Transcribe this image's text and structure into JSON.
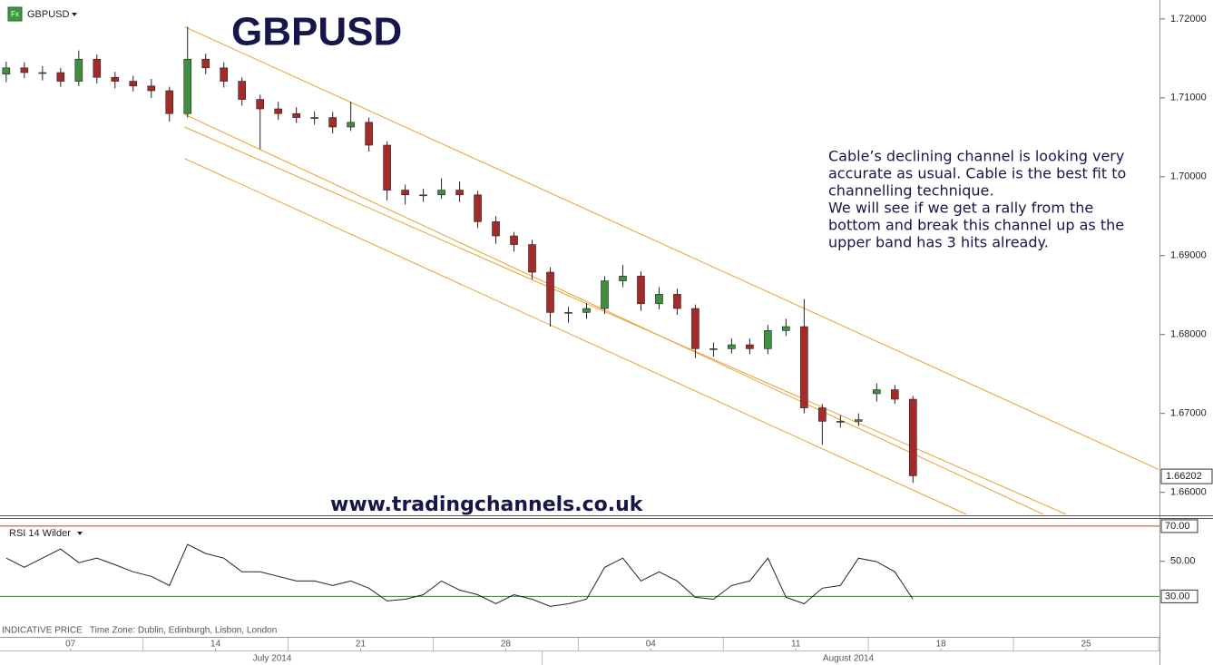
{
  "header": {
    "icon": "Fx",
    "symbol": "GBPUSD"
  },
  "chart_data": {
    "type": "candlestick",
    "title": "GBPUSD",
    "annotation": [
      "Cable’s declining channel is looking very",
      "accurate as usual. Cable is the best fit to",
      "channelling technique.",
      "We will see if we get a rally from the",
      "bottom and break this channel up as the",
      "upper band has 3 hits already."
    ],
    "watermark": "www.tradingchannels.co.uk",
    "up_color": "#3f8f3f",
    "down_color": "#a52a2a",
    "x": [
      3.9,
      4.775,
      5.65,
      6.525,
      7.4,
      8.275,
      9.15,
      10.025,
      10.9,
      11.775,
      12.65,
      13.525,
      14.4,
      15.275,
      16.15,
      17.025,
      17.9,
      18.775,
      19.65,
      20.525,
      21.4,
      22.275,
      23.15,
      24.025,
      24.9,
      25.775,
      26.65,
      27.525,
      28.4,
      29.275,
      30.15,
      31.025,
      31.9,
      32.775,
      33.65,
      34.525,
      35.4,
      36.275,
      37.15,
      38.025,
      38.9,
      39.775,
      40.65,
      41.525,
      42.4,
      43.275,
      44.15,
      45.025,
      45.9,
      46.775,
      47.65
    ],
    "ohlc": [
      [
        1.713,
        1.7146,
        1.712,
        1.7138
      ],
      [
        1.7138,
        1.7145,
        1.7125,
        1.7132
      ],
      [
        1.7132,
        1.714,
        1.7122,
        1.7132
      ],
      [
        1.7132,
        1.7138,
        1.7114,
        1.7121
      ],
      [
        1.7121,
        1.716,
        1.7115,
        1.7149
      ],
      [
        1.7149,
        1.7155,
        1.7118,
        1.7126
      ],
      [
        1.7126,
        1.7133,
        1.7112,
        1.7121
      ],
      [
        1.7121,
        1.7128,
        1.7108,
        1.7115
      ],
      [
        1.7115,
        1.7124,
        1.71,
        1.7109
      ],
      [
        1.7109,
        1.7114,
        1.707,
        1.708
      ],
      [
        1.708,
        1.719,
        1.7075,
        1.7149
      ],
      [
        1.7149,
        1.7156,
        1.713,
        1.7138
      ],
      [
        1.7138,
        1.7145,
        1.7113,
        1.7121
      ],
      [
        1.7121,
        1.7126,
        1.709,
        1.7098
      ],
      [
        1.7098,
        1.7104,
        1.7035,
        1.7086
      ],
      [
        1.7086,
        1.7095,
        1.7072,
        1.708
      ],
      [
        1.708,
        1.7088,
        1.7068,
        1.7075
      ],
      [
        1.7075,
        1.7083,
        1.7066,
        1.7075
      ],
      [
        1.7075,
        1.7082,
        1.7055,
        1.7063
      ],
      [
        1.7063,
        1.7095,
        1.7058,
        1.7069
      ],
      [
        1.7069,
        1.7075,
        1.7032,
        1.704
      ],
      [
        1.704,
        1.7045,
        1.697,
        1.6983
      ],
      [
        1.6983,
        1.699,
        1.6965,
        1.6977
      ],
      [
        1.6977,
        1.6985,
        1.6968,
        1.6977
      ],
      [
        1.6977,
        1.6998,
        1.6972,
        1.6983
      ],
      [
        1.6983,
        1.6994,
        1.6968,
        1.6977
      ],
      [
        1.6977,
        1.6982,
        1.6935,
        1.6943
      ],
      [
        1.6943,
        1.695,
        1.6915,
        1.6925
      ],
      [
        1.6925,
        1.693,
        1.6905,
        1.6914
      ],
      [
        1.6914,
        1.692,
        1.687,
        1.6879
      ],
      [
        1.6879,
        1.6885,
        1.681,
        1.6828
      ],
      [
        1.6828,
        1.6835,
        1.6815,
        1.6828
      ],
      [
        1.6828,
        1.684,
        1.682,
        1.6833
      ],
      [
        1.6833,
        1.6874,
        1.6826,
        1.6868
      ],
      [
        1.6868,
        1.6888,
        1.686,
        1.6874
      ],
      [
        1.6874,
        1.688,
        1.683,
        1.6839
      ],
      [
        1.6839,
        1.686,
        1.6832,
        1.6851
      ],
      [
        1.6851,
        1.6858,
        1.6825,
        1.6833
      ],
      [
        1.6833,
        1.6838,
        1.677,
        1.6782
      ],
      [
        1.6782,
        1.679,
        1.6772,
        1.6782
      ],
      [
        1.6782,
        1.6795,
        1.6776,
        1.6787
      ],
      [
        1.6787,
        1.6795,
        1.6775,
        1.6782
      ],
      [
        1.6782,
        1.6812,
        1.6775,
        1.6805
      ],
      [
        1.6805,
        1.682,
        1.6798,
        1.681
      ],
      [
        1.681,
        1.6845,
        1.67,
        1.6707
      ],
      [
        1.6707,
        1.6712,
        1.666,
        1.669
      ],
      [
        1.669,
        1.6698,
        1.6682,
        1.669
      ],
      [
        1.669,
        1.67,
        1.6684,
        1.6692
      ],
      [
        1.6725,
        1.6738,
        1.6715,
        1.673
      ],
      [
        1.673,
        1.6736,
        1.6712,
        1.6718
      ],
      [
        1.6718,
        1.6722,
        1.6612,
        1.6621
      ]
    ],
    "xlim": [
      3.6,
      59.5
    ],
    "xticks": [
      {
        "value": 7,
        "label": "07"
      },
      14,
      21,
      28,
      {
        "value": 35,
        "label": "04"
      },
      {
        "value": 42,
        "label": "11"
      },
      {
        "value": 49,
        "label": "18"
      },
      {
        "value": 56,
        "label": "25"
      }
    ],
    "months": [
      "July 2014",
      "August 2014"
    ],
    "ylim": [
      1.6572,
      1.7224
    ],
    "yticks": [
      {
        "value": 1.66,
        "label": "1.66000"
      },
      {
        "value": 1.67,
        "label": "1.67000"
      },
      {
        "value": 1.68,
        "label": "1.68000"
      },
      {
        "value": 1.69,
        "label": "1.69000"
      },
      {
        "value": 1.7,
        "label": "1.70000"
      },
      {
        "value": 1.71,
        "label": "1.71000"
      },
      {
        "value": 1.72,
        "label": "1.72000"
      }
    ],
    "last_price": 1.66202,
    "trendlines": [
      {
        "color": "#e8a030",
        "x": [
          12.51,
          59.5
        ],
        "y": [
          1.719,
          1.6629
        ]
      },
      {
        "color": "#e8a030",
        "x": [
          12.51,
          53.94
        ],
        "y": [
          1.7079,
          1.6572
        ]
      },
      {
        "color": "#e8a030",
        "x": [
          12.51,
          55.04
        ],
        "y": [
          1.7063,
          1.6572
        ]
      },
      {
        "color": "#e8a030",
        "x": [
          12.51,
          50.23
        ],
        "y": [
          1.7023,
          1.6572
        ]
      }
    ],
    "rsi": {
      "type": "line",
      "label": "RSI 14 Wilder",
      "color": "#222",
      "values": [
        51.8,
        46.6,
        51.8,
        57,
        49.2,
        51.8,
        48,
        44,
        41.4,
        36.2,
        59.6,
        54.4,
        51.8,
        44,
        44,
        41.4,
        38.8,
        38.8,
        36.2,
        38.8,
        34.7,
        27.4,
        28.4,
        31,
        38.8,
        33.6,
        31,
        25.8,
        31,
        28.4,
        24.3,
        25.8,
        28.4,
        46.6,
        51.8,
        38.8,
        44,
        38.8,
        29.5,
        28.4,
        36.2,
        38.8,
        51.8,
        29.5,
        25.8,
        34.7,
        36.2,
        51.8,
        49.8,
        44,
        28.4
      ],
      "ylim": [
        8,
        71
      ],
      "yticks": [
        {
          "value": 50,
          "label": "50.00"
        }
      ],
      "levels": [
        {
          "value": 70,
          "label": "70.00",
          "color": "#c0392b"
        },
        {
          "value": 30,
          "label": "30.00",
          "color": "#2e8b2e"
        }
      ]
    },
    "footer": "INDICATIVE PRICE   Time Zone: Dublin, Edinburgh, Lisbon, London"
  }
}
